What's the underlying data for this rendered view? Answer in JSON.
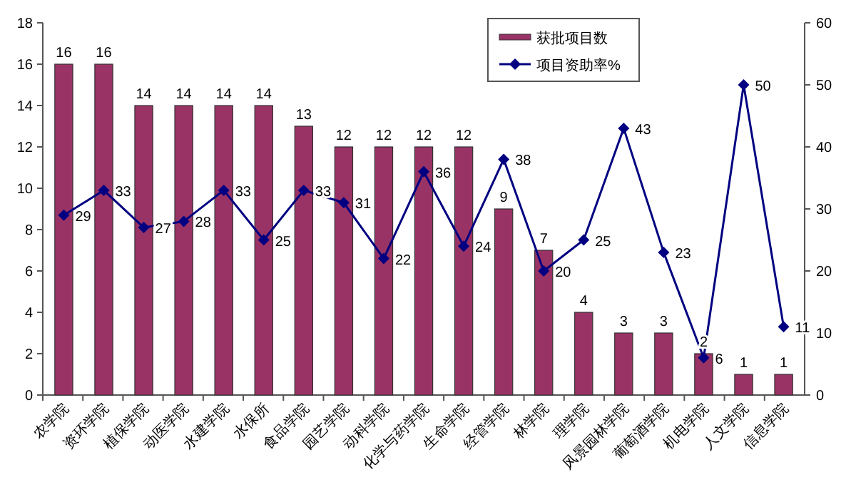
{
  "chart_data": {
    "type": "bar",
    "categories": [
      "农学院",
      "资环学院",
      "植保学院",
      "动医学院",
      "水建学院",
      "水保所",
      "食品学院",
      "园艺学院",
      "动科学院",
      "化学与药学院",
      "生命学院",
      "经管学院",
      "林学院",
      "理学院",
      "风景园林学院",
      "葡萄酒学院",
      "机电学院",
      "人文学院",
      "信息学院"
    ],
    "series": [
      {
        "name": "获批项目数",
        "color": "#993366",
        "values": [
          16,
          16,
          14,
          14,
          14,
          14,
          13,
          12,
          12,
          12,
          12,
          9,
          7,
          4,
          3,
          3,
          2,
          1,
          1
        ]
      },
      {
        "name": "项目资助率%",
        "type": "line",
        "axis": "y2",
        "color": "#000080",
        "values": [
          29,
          33,
          27,
          28,
          33,
          25,
          33,
          31,
          22,
          36,
          24,
          38,
          20,
          25,
          43,
          23,
          6,
          50,
          11
        ]
      }
    ],
    "ylim": [
      0,
      18
    ],
    "yticks": [
      0,
      2,
      4,
      6,
      8,
      10,
      12,
      14,
      16,
      18
    ],
    "y2lim": [
      0,
      60
    ],
    "y2ticks": [
      0,
      10,
      20,
      30,
      40,
      50,
      60
    ],
    "data_labels": true,
    "legend": "top right",
    "marker": "diamond",
    "grid": false
  }
}
